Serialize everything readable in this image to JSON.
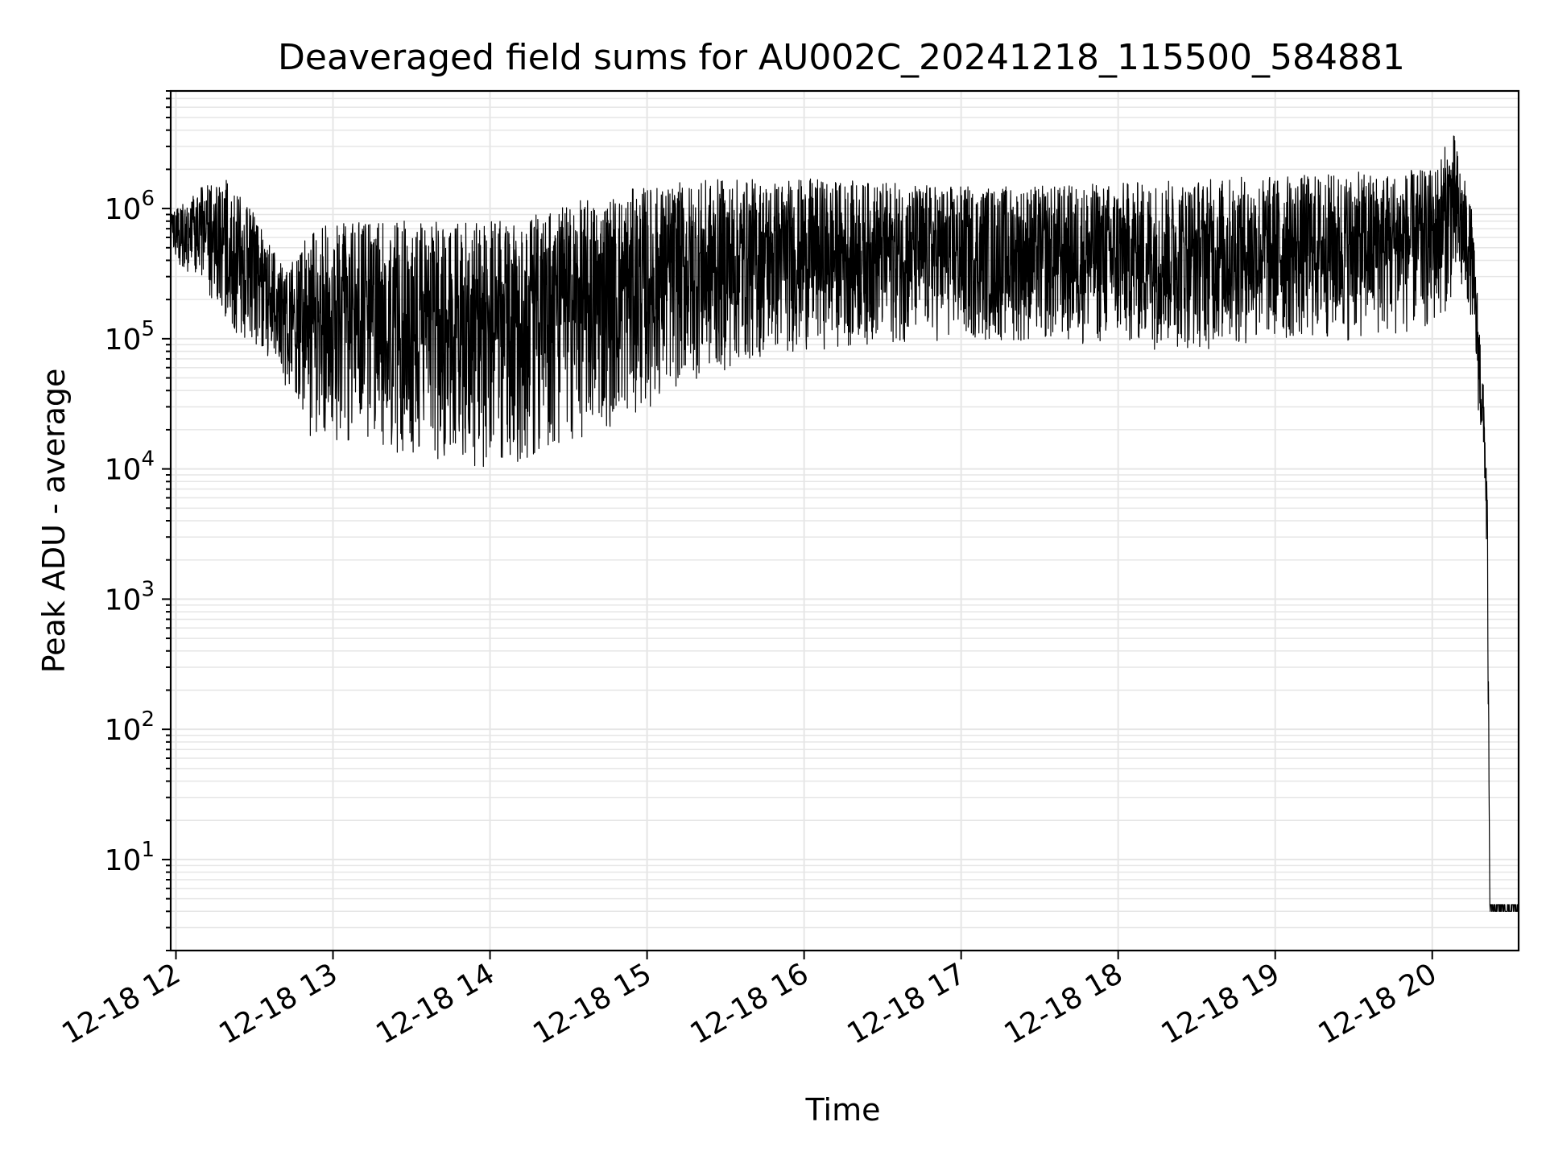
{
  "chart_data": {
    "type": "line",
    "title": "Deaveraged field sums for AU002C_20241218_115500_584881",
    "xlabel": "Time",
    "ylabel": "Peak ADU - average",
    "yscale": "log",
    "ylim": [
      2,
      8000000
    ],
    "xlim": [
      "2024-12-18 11:58",
      "2024-12-18 20:33"
    ],
    "grid": true,
    "x_ticks": [
      {
        "value": "2024-12-18 12:00",
        "label": "12-18 12"
      },
      {
        "value": "2024-12-18 13:00",
        "label": "12-18 13"
      },
      {
        "value": "2024-12-18 14:00",
        "label": "12-18 14"
      },
      {
        "value": "2024-12-18 15:00",
        "label": "12-18 15"
      },
      {
        "value": "2024-12-18 16:00",
        "label": "12-18 16"
      },
      {
        "value": "2024-12-18 17:00",
        "label": "12-18 17"
      },
      {
        "value": "2024-12-18 18:00",
        "label": "12-18 18"
      },
      {
        "value": "2024-12-18 19:00",
        "label": "12-18 19"
      },
      {
        "value": "2024-12-18 20:00",
        "label": "12-18 20"
      }
    ],
    "y_ticks": [
      {
        "value": 10,
        "base": "10",
        "exp": "1"
      },
      {
        "value": 100,
        "base": "10",
        "exp": "2"
      },
      {
        "value": 1000,
        "base": "10",
        "exp": "3"
      },
      {
        "value": 10000,
        "base": "10",
        "exp": "4"
      },
      {
        "value": 100000,
        "base": "10",
        "exp": "5"
      },
      {
        "value": 1000000,
        "base": "10",
        "exp": "6"
      }
    ],
    "envelope": {
      "description_units": "time (HH:MM on 2024-12-18) vs Peak ADU - average",
      "x": [
        "11:58",
        "12:10",
        "12:20",
        "12:30",
        "12:40",
        "12:45",
        "12:50",
        "13:00",
        "13:15",
        "13:30",
        "13:45",
        "14:00",
        "14:15",
        "14:30",
        "14:45",
        "15:00",
        "15:15",
        "15:30",
        "15:45",
        "16:00",
        "16:30",
        "17:00",
        "17:30",
        "18:00",
        "18:30",
        "19:00",
        "19:30",
        "20:00",
        "20:08",
        "20:15",
        "20:18",
        "20:20",
        "20:21",
        "20:22",
        "20:33"
      ],
      "low": [
        400000,
        250000,
        120000,
        90000,
        60000,
        25000,
        18000,
        16000,
        14000,
        12000,
        11000,
        10000,
        12000,
        15000,
        20000,
        28000,
        45000,
        55000,
        70000,
        80000,
        90000,
        95000,
        90000,
        85000,
        80000,
        90000,
        95000,
        110000,
        200000,
        150000,
        20000,
        8000,
        1000,
        4,
        4
      ],
      "high": [
        900000,
        1500000,
        1700000,
        900000,
        400000,
        400000,
        600000,
        800000,
        800000,
        900000,
        800000,
        800000,
        900000,
        1100000,
        1300000,
        1500000,
        1600000,
        1700000,
        1700000,
        1700000,
        1600000,
        1500000,
        1500000,
        1600000,
        1700000,
        1800000,
        1900000,
        2000000,
        4000000,
        1000000,
        150000,
        30000,
        10000,
        4.5,
        4.5
      ]
    }
  }
}
